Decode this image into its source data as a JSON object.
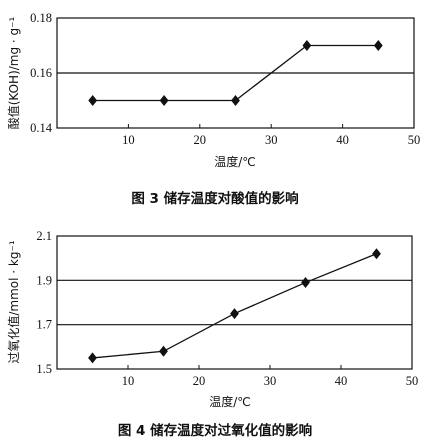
{
  "chart_data": [
    {
      "type": "line",
      "title": "",
      "caption": "图 3  储存温度对酸值的影响",
      "xlabel": "温度/℃",
      "ylabel": "酸值(KOH)/mg · g⁻¹",
      "xlim": [
        0,
        50
      ],
      "ylim": [
        0.14,
        0.18
      ],
      "xticks": [
        "10",
        "20",
        "30",
        "40",
        "50"
      ],
      "yticks": [
        "0.14",
        "0.16",
        "0.18"
      ],
      "grid": "horizontal",
      "marker": "diamond",
      "x": [
        5,
        15,
        25,
        35,
        45
      ],
      "y": [
        0.15,
        0.15,
        0.15,
        0.17,
        0.17
      ]
    },
    {
      "type": "line",
      "title": "",
      "caption": "图 4  储存温度对过氧化值的影响",
      "xlabel": "温度/℃",
      "ylabel": "过氧化值/mmol · kg⁻¹",
      "xlim": [
        0,
        50
      ],
      "ylim": [
        1.5,
        2.1
      ],
      "xticks": [
        "10",
        "20",
        "30",
        "40",
        "50"
      ],
      "yticks": [
        "1.5",
        "1.7",
        "1.9",
        "2.1"
      ],
      "grid": "horizontal",
      "marker": "diamond",
      "x": [
        5,
        15,
        25,
        35,
        45
      ],
      "y": [
        1.55,
        1.58,
        1.75,
        1.89,
        2.02
      ]
    }
  ]
}
